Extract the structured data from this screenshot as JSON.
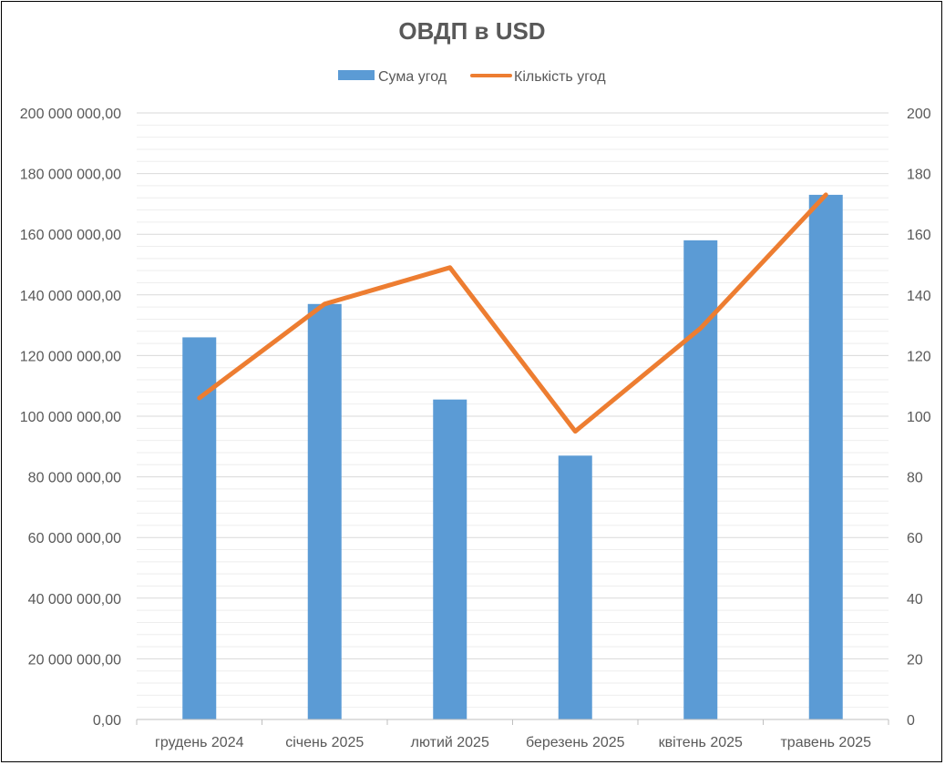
{
  "chart_data": {
    "type": "bar",
    "title": "ОВДП в USD",
    "categories": [
      "грудень 2024",
      "січень 2025",
      "лютий 2025",
      "березень 2025",
      "квітень 2025",
      "травень 2025"
    ],
    "series": [
      {
        "name": "Сума угод",
        "type": "bar",
        "axis": "left",
        "color": "#5B9BD5",
        "values": [
          126000000,
          137000000,
          105500000,
          87000000,
          158000000,
          173000000
        ]
      },
      {
        "name": "Кількість угод",
        "type": "line",
        "axis": "right",
        "color": "#ED7D31",
        "values": [
          106,
          137,
          149,
          95,
          129,
          173
        ]
      }
    ],
    "y_left": {
      "min": 0,
      "max": 200000000,
      "ticks": [
        "0,00",
        "20 000 000,00",
        "40 000 000,00",
        "60 000 000,00",
        "80 000 000,00",
        "100 000 000,00",
        "120 000 000,00",
        "140 000 000,00",
        "160 000 000,00",
        "180 000 000,00",
        "200 000 000,00"
      ]
    },
    "y_right": {
      "min": 0,
      "max": 200,
      "ticks": [
        "0",
        "20",
        "40",
        "60",
        "80",
        "100",
        "120",
        "140",
        "160",
        "180",
        "200"
      ]
    },
    "legend_position": "top",
    "grid": true
  }
}
